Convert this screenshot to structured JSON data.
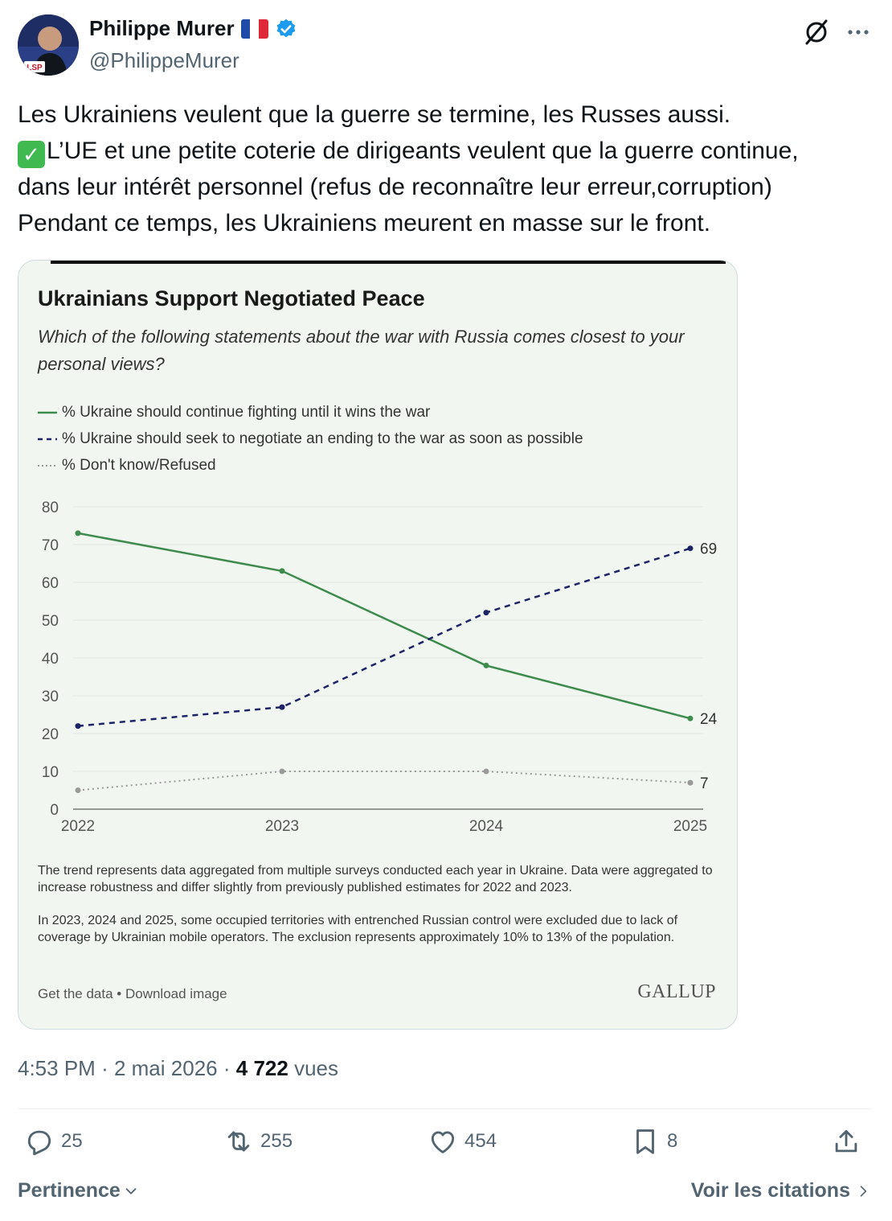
{
  "author": {
    "display_name": "Philippe Murer",
    "handle": "@PhilippeMurer",
    "avatar_text": "LSP"
  },
  "icons": {
    "verified": "verified-badge-icon",
    "grok": "grok-icon",
    "more": "more-icon",
    "check": "check-mark-emoji"
  },
  "tweet": {
    "lines": [
      "Les Ukrainiens veulent que la guerre se termine, les Russes aussi.",
      "L’UE et une petite coterie de dirigeants veulent que la guerre continue,",
      "dans leur intérêt personnel (refus de reconnaître leur erreur,corruption)",
      "Pendant ce temps, les Ukrainiens meurent en masse sur le front."
    ],
    "check_glyph": "✓"
  },
  "media": {
    "title": "Ukrainians Support Negotiated Peace",
    "subtitle": "Which of the following statements about the war with Russia comes closest to your personal views?",
    "footnote1": "The trend represents data aggregated from multiple surveys conducted each year in Ukraine. Data were aggregated to increase robustness and differ slightly from previously published estimates for 2022 and 2023.",
    "footnote2": "In 2023, 2024 and 2025, some occupied territories with entrenched Russian control were excluded due to lack of coverage by Ukrainian mobile operators. The exclusion represents approximately 10% to 13% of the population.",
    "get_data": "Get the data • Download image",
    "brand": "GALLUP"
  },
  "chart_data": {
    "type": "line",
    "title": "Ukrainians Support Negotiated Peace",
    "subtitle": "Which of the following statements about the war with Russia comes closest to your personal views?",
    "x": [
      "2022",
      "2023",
      "2024",
      "2025"
    ],
    "ylim": [
      0,
      80
    ],
    "yticks": [
      0,
      10,
      20,
      30,
      40,
      50,
      60,
      70,
      80
    ],
    "grid": true,
    "legend_position": "top-left",
    "series": [
      {
        "name": "% Ukraine should continue fighting until it wins the war",
        "values": [
          73,
          63,
          38,
          24
        ],
        "color": "#3e8b4e",
        "style": "solid",
        "end_label": "24"
      },
      {
        "name": "% Ukraine should seek to negotiate an ending to the war as soon as possible",
        "values": [
          22,
          27,
          52,
          69
        ],
        "color": "#1c2366",
        "style": "dashed",
        "end_label": "69"
      },
      {
        "name": "% Don't know/Refused",
        "values": [
          5,
          10,
          10,
          7
        ],
        "color": "#9a9a9a",
        "style": "dotted",
        "end_label": "7"
      }
    ]
  },
  "meta": {
    "time": "4:53 PM",
    "sep": "·",
    "date": "2 mai 2026",
    "views_count": "4 722",
    "views_label": "vues"
  },
  "actions": {
    "replies": "25",
    "reposts": "255",
    "likes": "454",
    "bookmarks": "8"
  },
  "footer": {
    "sort_label": "Pertinence",
    "quotes_label": "Voir les citations"
  }
}
